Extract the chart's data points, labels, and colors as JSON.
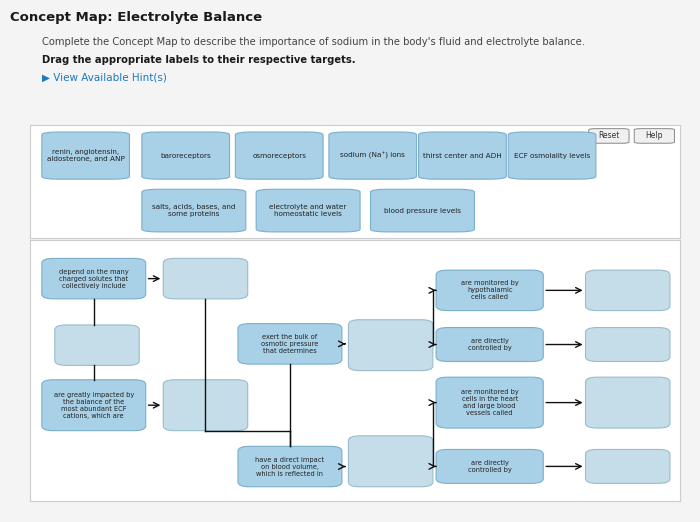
{
  "title": "Concept Map: Electrolyte Balance",
  "subtitle": "Complete the Concept Map to describe the importance of sodium in the body's fluid and electrolyte balance.",
  "bold_instruction": "Drag the appropriate labels to their respective targets.",
  "hint_text": "▶ View Available Hint(s)",
  "hint_color": "#1a7abf",
  "bg_color": "#f4f4f4",
  "panel_bg": "#ffffff",
  "panel_edge": "#cccccc",
  "label_box_color": "#a8d0e6",
  "label_box_edge": "#7aafcc",
  "blank_box_color": "#c5dde8",
  "blank_box_edge": "#9abccc",
  "top_labels_row1": [
    "renin, angiotensin,\naldosterone, and ANP",
    "baroreceptors",
    "osmoreceptors",
    "sodium (Na⁺) ions",
    "thirst center and ADH",
    "ECF osmolality levels"
  ],
  "top_labels_row2": [
    "salts, acids, bases, and\nsome proteins",
    "electrolyte and water\nhomeostatic levels",
    "blood pressure levels"
  ]
}
